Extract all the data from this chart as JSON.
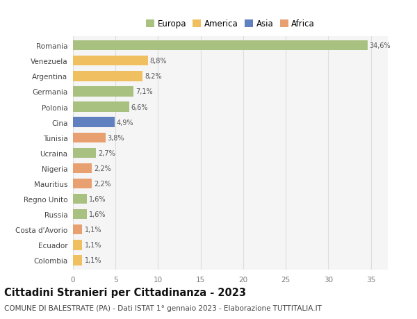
{
  "countries": [
    "Romania",
    "Venezuela",
    "Argentina",
    "Germania",
    "Polonia",
    "Cina",
    "Tunisia",
    "Ucraina",
    "Nigeria",
    "Mauritius",
    "Regno Unito",
    "Russia",
    "Costa d'Avorio",
    "Ecuador",
    "Colombia"
  ],
  "values": [
    34.6,
    8.8,
    8.2,
    7.1,
    6.6,
    4.9,
    3.8,
    2.7,
    2.2,
    2.2,
    1.6,
    1.6,
    1.1,
    1.1,
    1.1
  ],
  "labels": [
    "34,6%",
    "8,8%",
    "8,2%",
    "7,1%",
    "6,6%",
    "4,9%",
    "3,8%",
    "2,7%",
    "2,2%",
    "2,2%",
    "1,6%",
    "1,6%",
    "1,1%",
    "1,1%",
    "1,1%"
  ],
  "categories": [
    "Europa",
    "America",
    "America",
    "Europa",
    "Europa",
    "Asia",
    "Africa",
    "Europa",
    "Africa",
    "Africa",
    "Europa",
    "Europa",
    "Africa",
    "America",
    "America"
  ],
  "category_colors": {
    "Europa": "#a8c080",
    "America": "#f0c060",
    "Asia": "#6080c0",
    "Africa": "#e8a070"
  },
  "legend_order": [
    "Europa",
    "America",
    "Asia",
    "Africa"
  ],
  "bg_color": "#ffffff",
  "plot_bg_color": "#f5f5f5",
  "title": "Cittadini Stranieri per Cittadinanza - 2023",
  "subtitle": "COMUNE DI BALESTRATE (PA) - Dati ISTAT 1° gennaio 2023 - Elaborazione TUTTITALIA.IT",
  "xlim": [
    0,
    37
  ],
  "xticks": [
    0,
    5,
    10,
    15,
    20,
    25,
    30,
    35
  ],
  "grid_color": "#dddddd",
  "bar_height": 0.65,
  "label_fontsize": 7.0,
  "title_fontsize": 10.5,
  "subtitle_fontsize": 7.5,
  "tick_fontsize": 7.5,
  "legend_fontsize": 8.5
}
